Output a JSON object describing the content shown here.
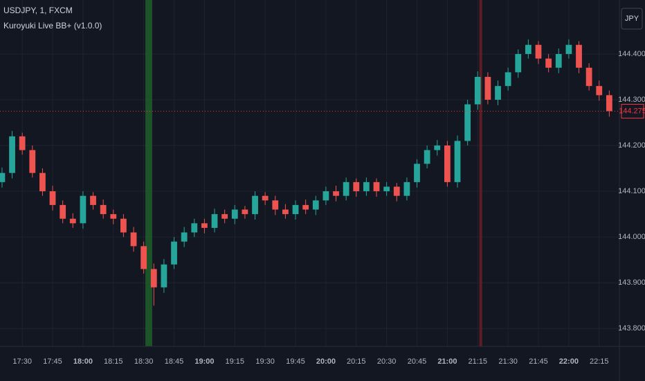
{
  "chart_data": {
    "type": "candlestick",
    "title": "USDJPY, 1, FXCM",
    "subtitle": "Kuroyuki Live BB+ (v1.0.0)",
    "currency": "JPY",
    "x": [
      1040,
      1045,
      1050,
      1055,
      1060,
      1065,
      1070,
      1075,
      1080,
      1085,
      1090,
      1095,
      1100,
      1105,
      1110,
      1115,
      1120,
      1125,
      1130,
      1135,
      1140,
      1145,
      1150,
      1155,
      1160,
      1165,
      1170,
      1175,
      1180,
      1185,
      1190,
      1195,
      1200,
      1205,
      1210,
      1215,
      1220,
      1225,
      1230,
      1235,
      1240,
      1245,
      1250,
      1255,
      1260,
      1265,
      1270,
      1275,
      1280,
      1285,
      1290,
      1295,
      1300,
      1305,
      1310,
      1315,
      1320,
      1325,
      1330,
      1335,
      1340
    ],
    "open": [
      144.12,
      144.14,
      144.22,
      144.19,
      144.14,
      144.1,
      144.07,
      144.04,
      144.03,
      144.09,
      144.07,
      144.05,
      144.04,
      144.01,
      143.98,
      143.93,
      143.89,
      143.94,
      143.99,
      144.01,
      144.03,
      144.02,
      144.05,
      144.04,
      144.06,
      144.05,
      144.09,
      144.08,
      144.06,
      144.05,
      144.07,
      144.06,
      144.08,
      144.1,
      144.09,
      144.12,
      144.1,
      144.12,
      144.1,
      144.11,
      144.09,
      144.12,
      144.16,
      144.19,
      144.2,
      144.12,
      144.21,
      144.29,
      144.35,
      144.3,
      144.33,
      144.36,
      144.4,
      144.42,
      144.39,
      144.37,
      144.4,
      144.42,
      144.37,
      144.33,
      144.31
    ],
    "high": [
      144.152,
      144.232,
      144.228,
      144.2,
      144.15,
      144.112,
      144.08,
      144.052,
      144.1,
      144.098,
      144.082,
      144.06,
      144.05,
      144.022,
      143.99,
      143.942,
      143.952,
      144.0,
      144.022,
      144.04,
      144.04,
      144.062,
      144.06,
      144.07,
      144.068,
      144.1,
      144.098,
      144.09,
      144.072,
      144.08,
      144.082,
      144.09,
      144.11,
      144.112,
      144.13,
      144.128,
      144.13,
      144.128,
      144.12,
      144.118,
      144.13,
      144.17,
      144.2,
      144.212,
      144.21,
      144.222,
      144.3,
      144.362,
      144.36,
      144.342,
      144.37,
      144.41,
      144.432,
      144.428,
      144.4,
      144.412,
      144.432,
      144.428,
      144.38,
      144.342,
      144.32
    ],
    "low": [
      144.108,
      144.128,
      144.18,
      144.13,
      144.09,
      144.058,
      144.03,
      144.02,
      144.018,
      144.06,
      144.04,
      144.028,
      144.0,
      143.968,
      143.92,
      143.85,
      143.878,
      143.93,
      143.978,
      144.0,
      144.008,
      144.01,
      144.03,
      144.028,
      144.04,
      144.038,
      144.07,
      144.048,
      144.04,
      144.038,
      144.05,
      144.048,
      144.07,
      144.078,
      144.08,
      144.088,
      144.09,
      144.088,
      144.09,
      144.078,
      144.08,
      144.108,
      144.15,
      144.178,
      144.11,
      144.108,
      144.2,
      144.278,
      144.29,
      144.288,
      144.32,
      144.348,
      144.39,
      144.378,
      144.36,
      144.358,
      144.39,
      144.358,
      144.32,
      144.298,
      144.263
    ],
    "close": [
      144.14,
      144.22,
      144.19,
      144.14,
      144.1,
      144.07,
      144.04,
      144.03,
      144.09,
      144.07,
      144.05,
      144.04,
      144.01,
      143.98,
      143.93,
      143.89,
      143.94,
      143.99,
      144.01,
      144.03,
      144.02,
      144.05,
      144.04,
      144.06,
      144.05,
      144.09,
      144.08,
      144.06,
      144.05,
      144.07,
      144.06,
      144.08,
      144.1,
      144.09,
      144.12,
      144.1,
      144.12,
      144.1,
      144.11,
      144.09,
      144.12,
      144.16,
      144.19,
      144.2,
      144.12,
      144.21,
      144.29,
      144.35,
      144.3,
      144.33,
      144.36,
      144.4,
      144.42,
      144.39,
      144.37,
      144.4,
      144.42,
      144.37,
      144.33,
      144.31,
      144.275
    ],
    "up_color": "#26a69a",
    "down_color": "#ef5350",
    "xlim": [
      1039,
      1345
    ],
    "ylim": [
      143.761,
      144.518
    ],
    "xticks": [
      {
        "value": 1050,
        "label": "17:30"
      },
      {
        "value": 1065,
        "label": "17:45"
      },
      {
        "value": 1080,
        "label": "18:00"
      },
      {
        "value": 1095,
        "label": "18:15"
      },
      {
        "value": 1110,
        "label": "18:30"
      },
      {
        "value": 1125,
        "label": "18:45"
      },
      {
        "value": 1140,
        "label": "19:00"
      },
      {
        "value": 1155,
        "label": "19:15"
      },
      {
        "value": 1170,
        "label": "19:30"
      },
      {
        "value": 1185,
        "label": "19:45"
      },
      {
        "value": 1200,
        "label": "20:00"
      },
      {
        "value": 1215,
        "label": "20:15"
      },
      {
        "value": 1230,
        "label": "20:30"
      },
      {
        "value": 1245,
        "label": "20:45"
      },
      {
        "value": 1260,
        "label": "21:00"
      },
      {
        "value": 1275,
        "label": "21:15"
      },
      {
        "value": 1290,
        "label": "21:30"
      },
      {
        "value": 1305,
        "label": "21:45"
      },
      {
        "value": 1320,
        "label": "22:00"
      },
      {
        "value": 1335,
        "label": "22:15"
      }
    ],
    "yticks": [
      {
        "value": 143.8,
        "label": "143.800"
      },
      {
        "value": 143.9,
        "label": "143.900"
      },
      {
        "value": 144.0,
        "label": "144.000"
      },
      {
        "value": 144.1,
        "label": "144.100"
      },
      {
        "value": 144.2,
        "label": "144.200"
      },
      {
        "value": 144.3,
        "label": "144.300"
      },
      {
        "value": 144.4,
        "label": "144.400"
      }
    ],
    "grid": true,
    "last_price": 144.275,
    "last_price_color": "#f23645",
    "highlights": [
      {
        "start": 1110.8,
        "end": 1114.2,
        "color": "#1f5e2a"
      },
      {
        "start": 1275.8,
        "end": 1277.2,
        "color": "#6b1f24"
      }
    ]
  }
}
